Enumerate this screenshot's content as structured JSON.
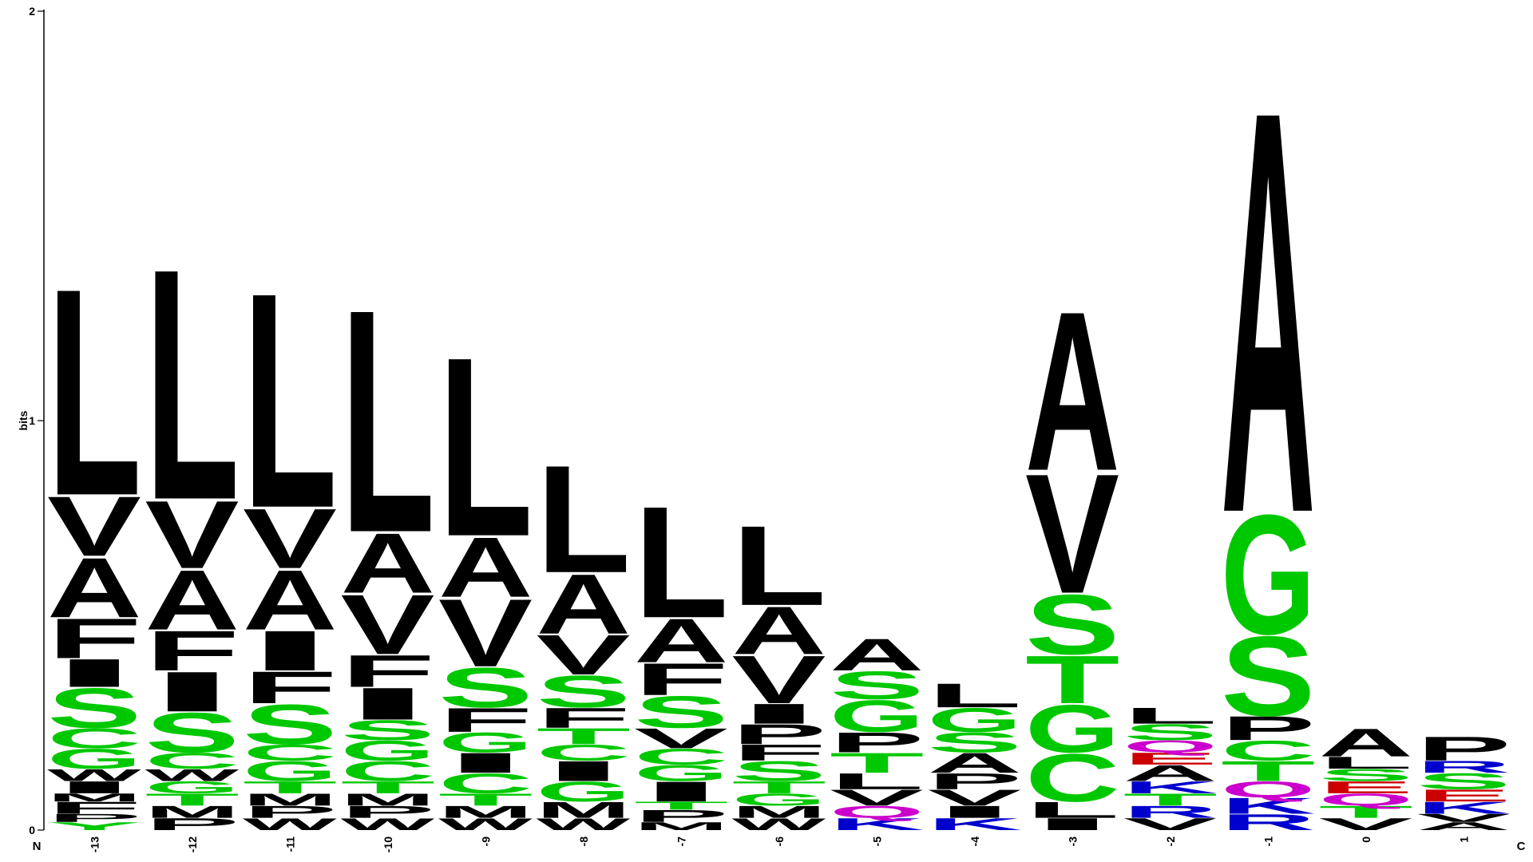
{
  "chart_data": {
    "type": "sequence-logo",
    "ylabel": "bits",
    "ylim": [
      0,
      2
    ],
    "y_ticks": [
      "0",
      "1",
      "2"
    ],
    "n_terminus_label": "N",
    "c_terminus_label": "C",
    "colors": {
      "hydrophobic": "#000000",
      "polar": "#00c800",
      "basic": "#0000cc",
      "acidic": "#cc0000",
      "amide": "#cc00cc"
    },
    "residue_color_groups": {
      "A": "hydrophobic",
      "V": "hydrophobic",
      "L": "hydrophobic",
      "I": "hydrophobic",
      "F": "hydrophobic",
      "M": "hydrophobic",
      "W": "hydrophobic",
      "P": "hydrophobic",
      "S": "polar",
      "T": "polar",
      "G": "polar",
      "C": "polar",
      "Y": "polar",
      "K": "basic",
      "R": "basic",
      "H": "basic",
      "D": "acidic",
      "E": "acidic",
      "N": "amide",
      "Q": "amide"
    },
    "positions": [
      {
        "label": "-13",
        "stack": [
          [
            "Y",
            0.02
          ],
          [
            "P",
            0.02
          ],
          [
            "F",
            0.03
          ],
          [
            "M",
            0.02
          ],
          [
            "I",
            0.03
          ],
          [
            "W",
            0.03
          ],
          [
            "G",
            0.05
          ],
          [
            "C",
            0.05
          ],
          [
            "S",
            0.1
          ],
          [
            "I",
            0.07
          ],
          [
            "F",
            0.1
          ],
          [
            "A",
            0.15
          ],
          [
            "V",
            0.15
          ],
          [
            "L",
            0.52
          ]
        ]
      },
      {
        "label": "-12",
        "stack": [
          [
            "P",
            0.03
          ],
          [
            "M",
            0.03
          ],
          [
            "T",
            0.03
          ],
          [
            "G",
            0.03
          ],
          [
            "W",
            0.03
          ],
          [
            "C",
            0.04
          ],
          [
            "S",
            0.1
          ],
          [
            "I",
            0.1
          ],
          [
            "F",
            0.1
          ],
          [
            "A",
            0.15
          ],
          [
            "V",
            0.17
          ],
          [
            "L",
            0.58
          ]
        ]
      },
      {
        "label": "-11",
        "stack": [
          [
            "W",
            0.03
          ],
          [
            "P",
            0.03
          ],
          [
            "M",
            0.03
          ],
          [
            "T",
            0.03
          ],
          [
            "G",
            0.05
          ],
          [
            "C",
            0.04
          ],
          [
            "S",
            0.1
          ],
          [
            "F",
            0.08
          ],
          [
            "I",
            0.1
          ],
          [
            "A",
            0.15
          ],
          [
            "V",
            0.15
          ],
          [
            "L",
            0.54
          ]
        ]
      },
      {
        "label": "-10",
        "stack": [
          [
            "W",
            0.03
          ],
          [
            "P",
            0.03
          ],
          [
            "M",
            0.03
          ],
          [
            "T",
            0.03
          ],
          [
            "C",
            0.05
          ],
          [
            "G",
            0.05
          ],
          [
            "S",
            0.05
          ],
          [
            "I",
            0.08
          ],
          [
            "F",
            0.08
          ],
          [
            "V",
            0.15
          ],
          [
            "A",
            0.15
          ],
          [
            "L",
            0.56
          ]
        ]
      },
      {
        "label": "-9",
        "stack": [
          [
            "W",
            0.03
          ],
          [
            "M",
            0.03
          ],
          [
            "T",
            0.03
          ],
          [
            "C",
            0.05
          ],
          [
            "I",
            0.05
          ],
          [
            "G",
            0.05
          ],
          [
            "F",
            0.06
          ],
          [
            "S",
            0.1
          ],
          [
            "V",
            0.17
          ],
          [
            "A",
            0.15
          ],
          [
            "L",
            0.45
          ]
        ]
      },
      {
        "label": "-8",
        "stack": [
          [
            "W",
            0.03
          ],
          [
            "M",
            0.04
          ],
          [
            "G",
            0.05
          ],
          [
            "I",
            0.05
          ],
          [
            "C",
            0.04
          ],
          [
            "T",
            0.04
          ],
          [
            "F",
            0.05
          ],
          [
            "S",
            0.08
          ],
          [
            "V",
            0.1
          ],
          [
            "A",
            0.15
          ],
          [
            "L",
            0.27
          ]
        ]
      },
      {
        "label": "-7",
        "stack": [
          [
            "M",
            0.02
          ],
          [
            "P",
            0.03
          ],
          [
            "T",
            0.02
          ],
          [
            "I",
            0.05
          ],
          [
            "G",
            0.04
          ],
          [
            "C",
            0.04
          ],
          [
            "V",
            0.05
          ],
          [
            "S",
            0.08
          ],
          [
            "F",
            0.08
          ],
          [
            "A",
            0.11
          ],
          [
            "L",
            0.28
          ]
        ]
      },
      {
        "label": "-6",
        "stack": [
          [
            "W",
            0.03
          ],
          [
            "M",
            0.03
          ],
          [
            "G",
            0.03
          ],
          [
            "T",
            0.03
          ],
          [
            "S",
            0.05
          ],
          [
            "F",
            0.04
          ],
          [
            "P",
            0.05
          ],
          [
            "I",
            0.05
          ],
          [
            "V",
            0.12
          ],
          [
            "A",
            0.12
          ],
          [
            "L",
            0.2
          ]
        ]
      },
      {
        "label": "-5",
        "stack": [
          [
            "K",
            0.03
          ],
          [
            "Q",
            0.03
          ],
          [
            "V",
            0.04
          ],
          [
            "L",
            0.04
          ],
          [
            "T",
            0.05
          ],
          [
            "P",
            0.05
          ],
          [
            "G",
            0.08
          ],
          [
            "S",
            0.07
          ],
          [
            "A",
            0.08
          ]
        ]
      },
      {
        "label": "-4",
        "stack": [
          [
            "K",
            0.03
          ],
          [
            "I",
            0.03
          ],
          [
            "V",
            0.04
          ],
          [
            "P",
            0.04
          ],
          [
            "A",
            0.05
          ],
          [
            "S",
            0.05
          ],
          [
            "G",
            0.06
          ],
          [
            "L",
            0.06
          ]
        ]
      },
      {
        "label": "-3",
        "stack": [
          [
            "I",
            0.03
          ],
          [
            "L",
            0.04
          ],
          [
            "C",
            0.12
          ],
          [
            "G",
            0.12
          ],
          [
            "T",
            0.12
          ],
          [
            "S",
            0.15
          ],
          [
            "V",
            0.3
          ],
          [
            "A",
            0.4
          ]
        ]
      },
      {
        "label": "-2",
        "stack": [
          [
            "V",
            0.03
          ],
          [
            "R",
            0.03
          ],
          [
            "T",
            0.03
          ],
          [
            "K",
            0.03
          ],
          [
            "A",
            0.04
          ],
          [
            "E",
            0.03
          ],
          [
            "Q",
            0.03
          ],
          [
            "S",
            0.04
          ],
          [
            "L",
            0.04
          ]
        ]
      },
      {
        "label": "-1",
        "stack": [
          [
            "R",
            0.04
          ],
          [
            "K",
            0.04
          ],
          [
            "Q",
            0.04
          ],
          [
            "T",
            0.05
          ],
          [
            "C",
            0.05
          ],
          [
            "P",
            0.06
          ],
          [
            "S",
            0.2
          ],
          [
            "G",
            0.3
          ],
          [
            "A",
            1.01
          ]
        ]
      },
      {
        "label": "0",
        "stack": [
          [
            "V",
            0.03
          ],
          [
            "T",
            0.03
          ],
          [
            "Q",
            0.03
          ],
          [
            "E",
            0.03
          ],
          [
            "S",
            0.03
          ],
          [
            "L",
            0.03
          ],
          [
            "A",
            0.07
          ]
        ]
      },
      {
        "label": "1",
        "stack": [
          [
            "A",
            0.02
          ],
          [
            "V",
            0.02
          ],
          [
            "K",
            0.03
          ],
          [
            "E",
            0.03
          ],
          [
            "S",
            0.04
          ],
          [
            "R",
            0.03
          ],
          [
            "P",
            0.06
          ]
        ]
      }
    ]
  }
}
